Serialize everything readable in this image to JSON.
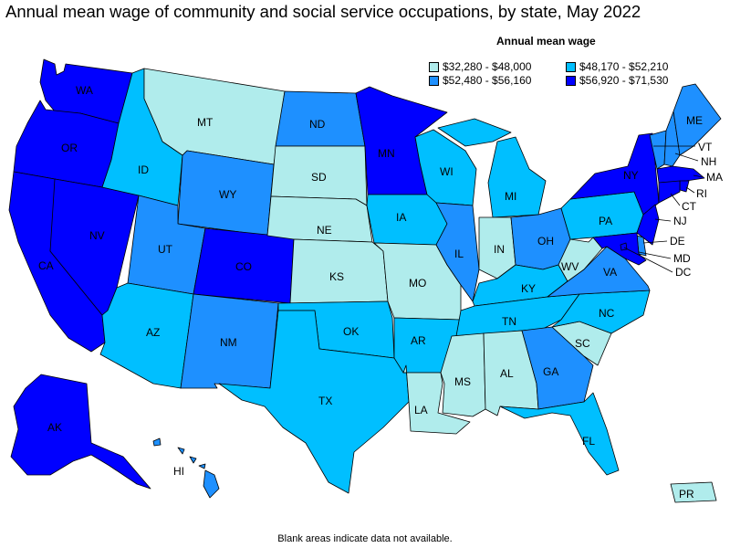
{
  "title": "Annual mean wage of community and social service occupations, by state, May 2022",
  "legend": {
    "title": "Annual mean wage",
    "items": [
      {
        "label": "$32,280 - $48,000",
        "color": "#b0ecec"
      },
      {
        "label": "$48,170 - $52,210",
        "color": "#00bfff"
      },
      {
        "label": "$52,480 - $56,160",
        "color": "#1e90ff"
      },
      {
        "label": "$56,920 - $71,530",
        "color": "#0000ff"
      }
    ]
  },
  "note": "Blank areas indicate data not available.",
  "states": [
    {
      "abbr": "WA",
      "tier": 3
    },
    {
      "abbr": "OR",
      "tier": 3
    },
    {
      "abbr": "CA",
      "tier": 3
    },
    {
      "abbr": "NV",
      "tier": 3
    },
    {
      "abbr": "ID",
      "tier": 1
    },
    {
      "abbr": "MT",
      "tier": 0
    },
    {
      "abbr": "WY",
      "tier": 2
    },
    {
      "abbr": "UT",
      "tier": 2
    },
    {
      "abbr": "AZ",
      "tier": 1
    },
    {
      "abbr": "CO",
      "tier": 3
    },
    {
      "abbr": "NM",
      "tier": 2
    },
    {
      "abbr": "ND",
      "tier": 2
    },
    {
      "abbr": "SD",
      "tier": 0
    },
    {
      "abbr": "NE",
      "tier": 0
    },
    {
      "abbr": "KS",
      "tier": 0
    },
    {
      "abbr": "OK",
      "tier": 1
    },
    {
      "abbr": "TX",
      "tier": 1
    },
    {
      "abbr": "MN",
      "tier": 3
    },
    {
      "abbr": "IA",
      "tier": 1
    },
    {
      "abbr": "MO",
      "tier": 0
    },
    {
      "abbr": "AR",
      "tier": 1
    },
    {
      "abbr": "LA",
      "tier": 0
    },
    {
      "abbr": "WI",
      "tier": 1
    },
    {
      "abbr": "IL",
      "tier": 2
    },
    {
      "abbr": "MI",
      "tier": 1
    },
    {
      "abbr": "IN",
      "tier": 0
    },
    {
      "abbr": "OH",
      "tier": 2
    },
    {
      "abbr": "KY",
      "tier": 1
    },
    {
      "abbr": "TN",
      "tier": 1
    },
    {
      "abbr": "MS",
      "tier": 0
    },
    {
      "abbr": "AL",
      "tier": 0
    },
    {
      "abbr": "GA",
      "tier": 2
    },
    {
      "abbr": "FL",
      "tier": 1
    },
    {
      "abbr": "SC",
      "tier": 0
    },
    {
      "abbr": "NC",
      "tier": 1
    },
    {
      "abbr": "VA",
      "tier": 2
    },
    {
      "abbr": "WV",
      "tier": 0
    },
    {
      "abbr": "PA",
      "tier": 1
    },
    {
      "abbr": "NY",
      "tier": 3
    },
    {
      "abbr": "VT",
      "tier": 2
    },
    {
      "abbr": "NH",
      "tier": 2
    },
    {
      "abbr": "ME",
      "tier": 2
    },
    {
      "abbr": "MA",
      "tier": 3
    },
    {
      "abbr": "RI",
      "tier": 3
    },
    {
      "abbr": "CT",
      "tier": 3
    },
    {
      "abbr": "NJ",
      "tier": 3
    },
    {
      "abbr": "DE",
      "tier": 2
    },
    {
      "abbr": "MD",
      "tier": 3
    },
    {
      "abbr": "DC",
      "tier": 3
    },
    {
      "abbr": "AK",
      "tier": 3
    },
    {
      "abbr": "HI",
      "tier": 2
    },
    {
      "abbr": "PR",
      "tier": 0
    }
  ]
}
